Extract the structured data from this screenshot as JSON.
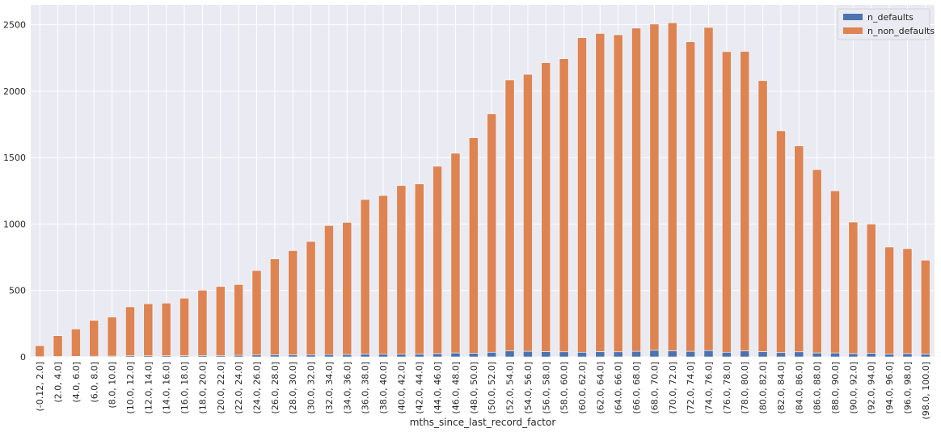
{
  "chart_data": {
    "type": "bar",
    "stacked": true,
    "title": "",
    "xlabel": "mths_since_last_record_factor",
    "ylabel": "",
    "ylim": [
      0,
      2650
    ],
    "yticks": [
      0,
      500,
      1000,
      1500,
      2000,
      2500
    ],
    "grid": true,
    "legend_position": "top-right",
    "categories": [
      "(-0.12, 2.0]",
      "(2.0, 4.0]",
      "(4.0, 6.0]",
      "(6.0, 8.0]",
      "(8.0, 10.0]",
      "(10.0, 12.0]",
      "(12.0, 14.0]",
      "(14.0, 16.0]",
      "(16.0, 18.0]",
      "(18.0, 20.0]",
      "(20.0, 22.0]",
      "(22.0, 24.0]",
      "(24.0, 26.0]",
      "(26.0, 28.0]",
      "(28.0, 30.0]",
      "(30.0, 32.0]",
      "(32.0, 34.0]",
      "(34.0, 36.0]",
      "(36.0, 38.0]",
      "(38.0, 40.0]",
      "(40.0, 42.0]",
      "(42.0, 44.0]",
      "(44.0, 46.0]",
      "(46.0, 48.0]",
      "(48.0, 50.0]",
      "(50.0, 52.0]",
      "(52.0, 54.0]",
      "(54.0, 56.0]",
      "(56.0, 58.0]",
      "(58.0, 60.0]",
      "(60.0, 62.0]",
      "(62.0, 64.0]",
      "(64.0, 66.0]",
      "(66.0, 68.0]",
      "(68.0, 70.0]",
      "(70.0, 72.0]",
      "(72.0, 74.0]",
      "(74.0, 76.0]",
      "(76.0, 78.0]",
      "(78.0, 80.0]",
      "(80.0, 82.0]",
      "(82.0, 84.0]",
      "(84.0, 86.0]",
      "(86.0, 88.0]",
      "(88.0, 90.0]",
      "(90.0, 92.0]",
      "(92.0, 94.0]",
      "(94.0, 96.0]",
      "(96.0, 98.0]",
      "(98.0, 100.0]"
    ],
    "series": [
      {
        "name": "n_defaults",
        "color": "#4c72b0",
        "values": [
          2,
          3,
          4,
          5,
          6,
          8,
          8,
          8,
          9,
          10,
          10,
          12,
          14,
          16,
          15,
          16,
          17,
          18,
          22,
          20,
          20,
          22,
          25,
          30,
          28,
          35,
          45,
          42,
          40,
          38,
          35,
          40,
          38,
          42,
          50,
          45,
          42,
          48,
          35,
          45,
          40,
          32,
          38,
          30,
          30,
          25,
          28,
          22,
          25,
          22
        ]
      },
      {
        "name": "n_non_defaults",
        "color": "#dd8452",
        "values": [
          83,
          157,
          206,
          270,
          294,
          369,
          392,
          397,
          433,
          492,
          520,
          533,
          636,
          722,
          785,
          853,
          972,
          995,
          1163,
          1195,
          1270,
          1280,
          1410,
          1503,
          1622,
          1795,
          2040,
          2085,
          2175,
          2207,
          2368,
          2395,
          2387,
          2433,
          2455,
          2470,
          2330,
          2432,
          2263,
          2255,
          2040,
          1670,
          1550,
          1380,
          1220,
          990,
          972,
          805,
          790,
          706
        ]
      }
    ]
  }
}
